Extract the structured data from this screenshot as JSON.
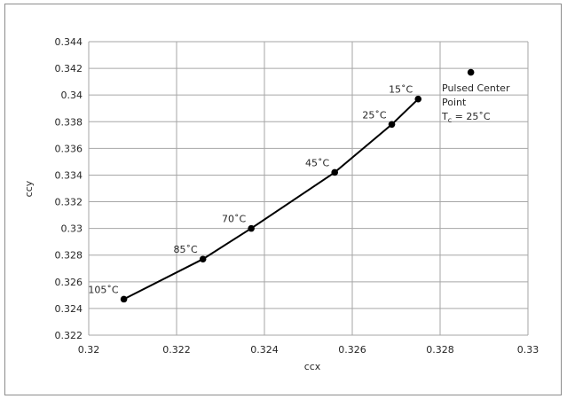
{
  "chart_data": {
    "type": "scatter",
    "title": "",
    "xlabel": "ccx",
    "ylabel": "ccy",
    "xlim": [
      0.32,
      0.33
    ],
    "ylim": [
      0.322,
      0.344
    ],
    "x_ticks": [
      "0.32",
      "0.322",
      "0.324",
      "0.326",
      "0.328",
      "0.33"
    ],
    "y_ticks": [
      "0.322",
      "0.324",
      "0.326",
      "0.328",
      "0.33",
      "0.332",
      "0.334",
      "0.336",
      "0.338",
      "0.34",
      "0.342",
      "0.344"
    ],
    "grid": true,
    "series": [
      {
        "points": [
          {
            "x": 0.3208,
            "y": 0.3247,
            "label": "105˚C"
          },
          {
            "x": 0.3226,
            "y": 0.3277,
            "label": "85˚C"
          },
          {
            "x": 0.3237,
            "y": 0.33,
            "label": "70˚C"
          },
          {
            "x": 0.3256,
            "y": 0.3342,
            "label": "45˚C"
          },
          {
            "x": 0.3269,
            "y": 0.3378,
            "label": "25˚C"
          },
          {
            "x": 0.3275,
            "y": 0.3397,
            "label": "15˚C"
          }
        ]
      },
      {
        "points": [
          {
            "x": 0.3287,
            "y": 0.3417
          }
        ]
      }
    ],
    "annotations": {
      "pulsed_line1": "Pulsed Center",
      "pulsed_line2": "Point",
      "tc_main": "T",
      "tc_sub": "c",
      "tc_rest": " = 25˚C"
    },
    "colors": {
      "line": "#000000",
      "grid": "#a6a6a6",
      "text": "#262626"
    }
  }
}
